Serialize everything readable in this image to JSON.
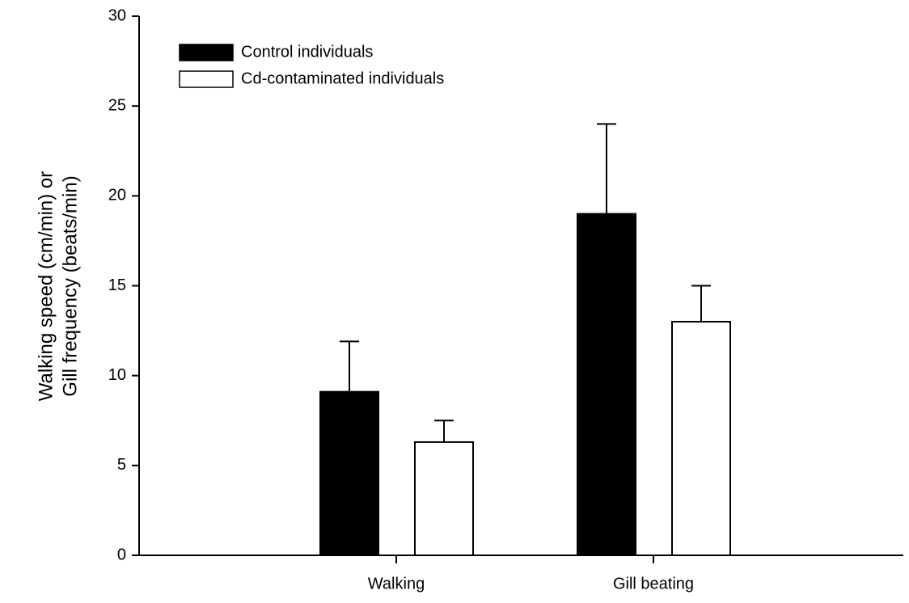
{
  "chart_data": {
    "type": "bar",
    "ylabel": [
      "Walking speed (cm/min) or",
      "Gill frequency (beats/min)"
    ],
    "categories": [
      "Walking",
      "Gill beating"
    ],
    "series": [
      {
        "name": "Control individuals",
        "color": "#000000",
        "values": [
          9.1,
          19.0
        ],
        "errors": [
          2.8,
          5.0
        ]
      },
      {
        "name": "Cd-contaminated individuals",
        "color": "#ffffff",
        "values": [
          6.3,
          13.0
        ],
        "errors": [
          1.2,
          2.0
        ]
      }
    ],
    "ylim": [
      0,
      30
    ],
    "yticks": [
      0,
      5,
      10,
      15,
      20,
      25,
      30
    ],
    "grid": false,
    "legend": "upper left"
  }
}
